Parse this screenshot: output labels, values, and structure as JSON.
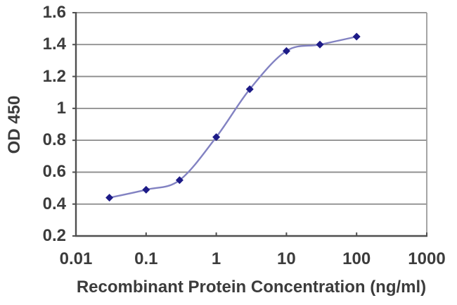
{
  "chart_data": {
    "type": "line",
    "title": "",
    "xlabel": "Recombinant Protein Concentration (ng/ml)",
    "ylabel": "OD 450",
    "x_scale": "log",
    "xlim": [
      0.01,
      1000
    ],
    "ylim": [
      0.2,
      1.6
    ],
    "xticks": [
      0.01,
      0.1,
      1,
      10,
      100,
      1000
    ],
    "xtick_labels": [
      "0.01",
      "0.1",
      "1",
      "10",
      "100",
      "1000"
    ],
    "yticks": [
      0.2,
      0.4,
      0.6,
      0.8,
      1,
      1.2,
      1.4,
      1.6
    ],
    "ytick_labels": [
      "0.2",
      "0.4",
      "0.6",
      "0.8",
      "1",
      "1.2",
      "1.4",
      "1.6"
    ],
    "grid": true,
    "legend": "none",
    "series": [
      {
        "x": [
          0.03,
          0.1,
          0.3,
          1,
          3,
          10,
          30,
          100
        ],
        "y": [
          0.44,
          0.49,
          0.55,
          0.82,
          1.12,
          1.36,
          1.4,
          1.45
        ],
        "marker": "diamond",
        "smooth": true
      }
    ],
    "colors": {
      "line": "#8282c2",
      "marker": "#1d1b87",
      "grid": "#8b8b8b",
      "axis": "#4f4f4f",
      "border": "#9b9b9b",
      "text": "#3c3c3c",
      "background": "#ffffff"
    }
  }
}
